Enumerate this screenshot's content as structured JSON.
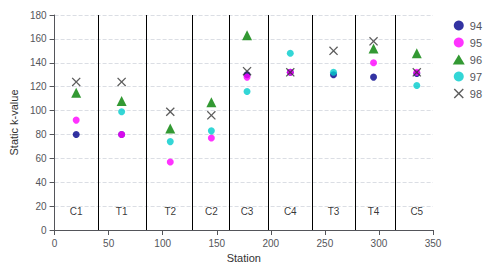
{
  "chart_data": {
    "type": "scatter",
    "xlabel": "Station",
    "ylabel": "Static k-value",
    "xlim": [
      0,
      350
    ],
    "ylim": [
      0,
      180
    ],
    "xticks": [
      0,
      50,
      100,
      150,
      200,
      250,
      300,
      350
    ],
    "yticks": [
      0,
      20,
      40,
      60,
      80,
      100,
      120,
      140,
      160,
      180
    ],
    "grid": true,
    "legend": "right",
    "vlines": [
      40,
      85,
      127,
      162,
      198,
      238,
      278,
      315
    ],
    "annotations": [
      {
        "text": "C1",
        "x": 20,
        "y": 10
      },
      {
        "text": "T1",
        "x": 62,
        "y": 10
      },
      {
        "text": "T2",
        "x": 107,
        "y": 10
      },
      {
        "text": "C2",
        "x": 145,
        "y": 10
      },
      {
        "text": "C3",
        "x": 178,
        "y": 10
      },
      {
        "text": "C4",
        "x": 218,
        "y": 10
      },
      {
        "text": "T3",
        "x": 258,
        "y": 10
      },
      {
        "text": "T4",
        "x": 295,
        "y": 10
      },
      {
        "text": "C5",
        "x": 335,
        "y": 10
      }
    ],
    "series": [
      {
        "name": "94",
        "color": "#00008B",
        "marker": "circle",
        "x": [
          20,
          62,
          178,
          218,
          258,
          295,
          335
        ],
        "values": [
          80,
          80,
          130,
          132,
          130,
          128,
          131
        ]
      },
      {
        "name": "95",
        "color": "#FF00FF",
        "marker": "circle",
        "x": [
          20,
          62,
          107,
          145,
          178,
          218,
          295,
          335
        ],
        "values": [
          92,
          80,
          57,
          77,
          128,
          132,
          140,
          132
        ]
      },
      {
        "name": "96",
        "color": "#008000",
        "marker": "triangle",
        "x": [
          20,
          62,
          107,
          145,
          178,
          295,
          335
        ],
        "values": [
          115,
          108,
          85,
          107,
          163,
          152,
          148
        ]
      },
      {
        "name": "97",
        "color": "#00CCCC",
        "marker": "circle",
        "x": [
          62,
          107,
          145,
          178,
          218,
          258,
          335
        ],
        "values": [
          99,
          74,
          83,
          116,
          148,
          132,
          121
        ]
      },
      {
        "name": "98",
        "color": "#333333",
        "marker": "x",
        "x": [
          20,
          62,
          107,
          145,
          178,
          218,
          258,
          295,
          335
        ],
        "values": [
          124,
          124,
          99,
          96,
          133,
          132,
          150,
          158,
          132
        ]
      }
    ]
  }
}
